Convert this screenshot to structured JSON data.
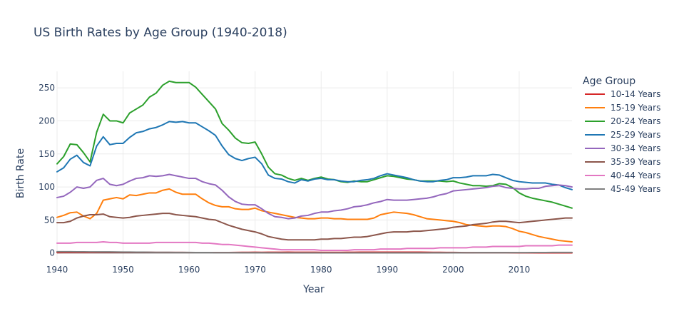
{
  "chart_data": {
    "type": "line",
    "title": "US Birth Rates by Age Group (1940-2018)",
    "xlabel": "Year",
    "ylabel": "Birth Rate",
    "xlim": [
      1940,
      2018
    ],
    "ylim": [
      -10,
      275
    ],
    "xticks": [
      1940,
      1950,
      1960,
      1970,
      1980,
      1990,
      2000,
      2010
    ],
    "yticks": [
      0,
      50,
      100,
      150,
      200,
      250
    ],
    "grid": true,
    "legend": {
      "title": "Age Group",
      "placement": "right"
    },
    "x": [
      1940,
      1941,
      1942,
      1943,
      1944,
      1945,
      1946,
      1947,
      1948,
      1949,
      1950,
      1951,
      1952,
      1953,
      1954,
      1955,
      1956,
      1957,
      1958,
      1959,
      1960,
      1961,
      1962,
      1963,
      1964,
      1965,
      1966,
      1967,
      1968,
      1969,
      1970,
      1971,
      1972,
      1973,
      1974,
      1975,
      1976,
      1977,
      1978,
      1979,
      1980,
      1981,
      1982,
      1983,
      1984,
      1985,
      1986,
      1987,
      1988,
      1989,
      1990,
      1991,
      1992,
      1993,
      1994,
      1995,
      1996,
      1997,
      1998,
      1999,
      2000,
      2001,
      2002,
      2003,
      2004,
      2005,
      2006,
      2007,
      2008,
      2009,
      2010,
      2011,
      2012,
      2013,
      2014,
      2015,
      2016,
      2017,
      2018
    ],
    "series": [
      {
        "name": "10-14 Years",
        "color": "#d62728",
        "values": [
          0.7,
          0.8,
          0.8,
          0.8,
          0.8,
          0.8,
          0.9,
          1.0,
          1.0,
          1.0,
          1.0,
          1.0,
          1.0,
          1.0,
          1.0,
          0.9,
          0.9,
          0.9,
          0.9,
          0.9,
          0.8,
          0.8,
          0.8,
          0.8,
          0.8,
          0.8,
          0.8,
          0.9,
          1.0,
          1.0,
          1.2,
          1.1,
          1.2,
          1.2,
          1.2,
          1.3,
          1.2,
          1.2,
          1.2,
          1.2,
          1.1,
          1.1,
          1.1,
          1.1,
          1.2,
          1.2,
          1.3,
          1.3,
          1.3,
          1.4,
          1.4,
          1.4,
          1.4,
          1.4,
          1.4,
          1.3,
          1.2,
          1.1,
          1.0,
          0.9,
          0.9,
          0.8,
          0.7,
          0.6,
          0.7,
          0.7,
          0.6,
          0.6,
          0.6,
          0.5,
          0.4,
          0.4,
          0.4,
          0.3,
          0.3,
          0.2,
          0.2,
          0.2,
          0.2
        ]
      },
      {
        "name": "15-19 Years",
        "color": "#ff7f0e",
        "values": [
          54,
          57,
          61,
          62,
          56,
          52,
          60,
          80,
          82,
          84,
          82,
          88,
          87,
          89,
          91,
          91,
          95,
          97,
          92,
          89,
          89,
          89,
          82,
          76,
          72,
          70,
          70,
          67,
          66,
          66,
          68,
          64,
          62,
          60,
          58,
          56,
          54,
          53,
          52,
          52,
          53,
          53,
          52,
          52,
          51,
          51,
          51,
          51,
          53,
          58,
          60,
          62,
          61,
          60,
          58,
          55,
          52,
          51,
          50,
          49,
          48,
          46,
          43,
          42,
          41,
          40,
          41,
          41,
          40,
          37,
          33,
          31,
          28,
          25,
          23,
          21,
          19,
          18,
          17
        ]
      },
      {
        "name": "20-24 Years",
        "color": "#2ca02c",
        "values": [
          135,
          146,
          165,
          164,
          152,
          138,
          183,
          210,
          200,
          200,
          197,
          212,
          218,
          224,
          236,
          242,
          254,
          260,
          258,
          258,
          258,
          251,
          240,
          229,
          218,
          196,
          186,
          174,
          167,
          166,
          168,
          150,
          130,
          120,
          118,
          113,
          110,
          113,
          110,
          113,
          115,
          112,
          111,
          108,
          107,
          109,
          108,
          108,
          111,
          114,
          117,
          116,
          114,
          112,
          111,
          109,
          109,
          109,
          109,
          108,
          109,
          106,
          104,
          102,
          102,
          101,
          102,
          105,
          104,
          99,
          91,
          86,
          83,
          81,
          79,
          77,
          74,
          71,
          68
        ]
      },
      {
        "name": "25-29 Years",
        "color": "#1f77b4",
        "values": [
          123,
          129,
          142,
          148,
          137,
          132,
          162,
          176,
          164,
          166,
          166,
          175,
          182,
          184,
          188,
          190,
          194,
          199,
          198,
          199,
          197,
          197,
          191,
          185,
          178,
          162,
          149,
          143,
          140,
          143,
          145,
          135,
          118,
          113,
          112,
          108,
          106,
          111,
          109,
          112,
          113,
          111,
          111,
          109,
          108,
          108,
          110,
          111,
          113,
          117,
          120,
          118,
          116,
          114,
          111,
          109,
          108,
          108,
          110,
          111,
          114,
          114,
          115,
          117,
          117,
          117,
          119,
          118,
          114,
          110,
          108,
          107,
          106,
          106,
          106,
          104,
          103,
          99,
          96
        ]
      },
      {
        "name": "30-34 Years",
        "color": "#9467bd",
        "values": [
          84,
          86,
          92,
          100,
          98,
          100,
          110,
          113,
          104,
          102,
          104,
          109,
          113,
          114,
          117,
          116,
          117,
          119,
          117,
          115,
          113,
          113,
          108,
          105,
          103,
          95,
          85,
          78,
          74,
          73,
          73,
          67,
          60,
          55,
          54,
          52,
          53,
          56,
          57,
          60,
          62,
          62,
          64,
          65,
          67,
          70,
          71,
          73,
          76,
          78,
          81,
          80,
          80,
          80,
          81,
          82,
          83,
          85,
          88,
          90,
          94,
          95,
          96,
          97,
          98,
          99,
          101,
          102,
          99,
          98,
          97,
          97,
          98,
          98,
          101,
          102,
          103,
          102,
          100
        ]
      },
      {
        "name": "35-39 Years",
        "color": "#8c564b",
        "values": [
          46,
          46,
          48,
          53,
          56,
          58,
          58,
          59,
          55,
          54,
          53,
          54,
          56,
          57,
          58,
          59,
          60,
          60,
          58,
          57,
          56,
          55,
          53,
          51,
          50,
          46,
          42,
          39,
          36,
          34,
          32,
          29,
          25,
          23,
          21,
          20,
          20,
          20,
          20,
          20,
          21,
          21,
          22,
          22,
          23,
          24,
          24,
          25,
          27,
          29,
          31,
          32,
          32,
          32,
          33,
          33,
          34,
          35,
          36,
          37,
          39,
          40,
          41,
          43,
          44,
          45,
          47,
          48,
          48,
          47,
          46,
          47,
          48,
          49,
          50,
          51,
          52,
          53,
          53
        ]
      },
      {
        "name": "40-44 Years",
        "color": "#e377c2",
        "values": [
          15,
          15,
          15,
          16,
          16,
          16,
          16,
          17,
          16,
          16,
          15,
          15,
          15,
          15,
          15,
          16,
          16,
          16,
          16,
          16,
          16,
          16,
          15,
          15,
          14,
          13,
          13,
          12,
          11,
          10,
          9,
          8,
          7,
          6,
          5,
          5,
          5,
          5,
          5,
          5,
          4,
          4,
          4,
          4,
          4,
          5,
          5,
          5,
          5,
          6,
          6,
          6,
          6,
          7,
          7,
          7,
          7,
          7,
          8,
          8,
          8,
          8,
          8,
          9,
          9,
          9,
          10,
          10,
          10,
          10,
          10,
          11,
          11,
          11,
          11,
          11,
          12,
          12,
          12
        ]
      },
      {
        "name": "45-49 Years",
        "color": "#7f7f7f",
        "values": [
          2.0,
          2.0,
          2.0,
          1.9,
          1.9,
          1.8,
          1.8,
          1.8,
          1.7,
          1.6,
          1.5,
          1.5,
          1.4,
          1.3,
          1.2,
          1.1,
          1.0,
          1.0,
          0.9,
          0.9,
          0.9,
          0.8,
          0.8,
          0.8,
          0.7,
          0.7,
          0.7,
          0.6,
          0.5,
          0.5,
          0.5,
          0.5,
          0.4,
          0.4,
          0.3,
          0.3,
          0.3,
          0.3,
          0.3,
          0.2,
          0.2,
          0.2,
          0.2,
          0.2,
          0.2,
          0.2,
          0.2,
          0.2,
          0.2,
          0.2,
          0.2,
          0.3,
          0.3,
          0.3,
          0.3,
          0.3,
          0.3,
          0.4,
          0.4,
          0.4,
          0.5,
          0.5,
          0.5,
          0.5,
          0.6,
          0.6,
          0.6,
          0.7,
          0.7,
          0.7,
          0.7,
          0.7,
          0.8,
          0.8,
          0.8,
          0.9,
          0.9,
          0.9,
          0.9
        ]
      }
    ]
  }
}
